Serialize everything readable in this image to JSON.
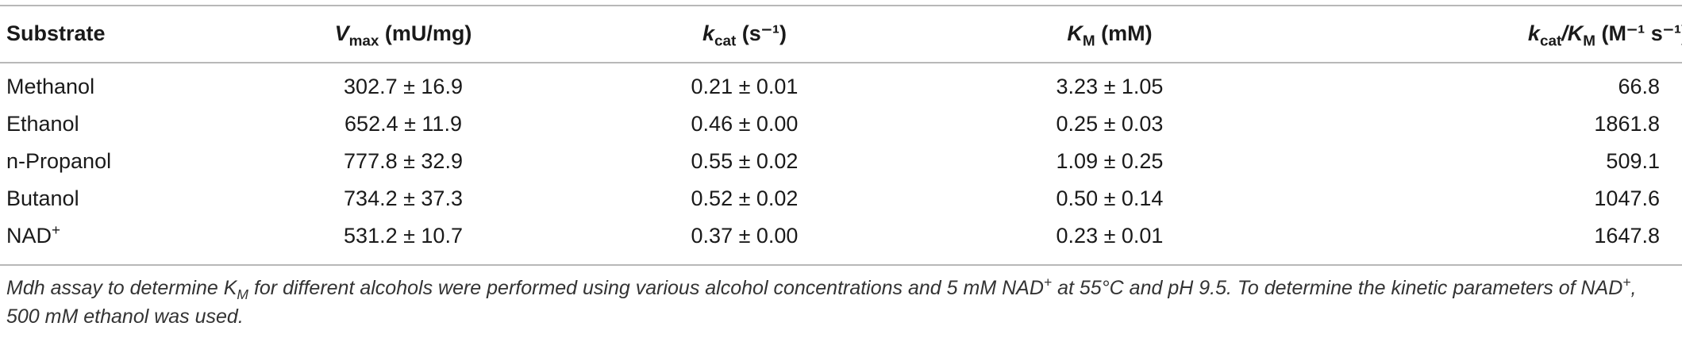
{
  "table": {
    "headers": [
      {
        "main": "Substrate",
        "sub": "",
        "unit": ""
      },
      {
        "main": "V",
        "sub": "max",
        "unit": " (mU/mg)"
      },
      {
        "main": "k",
        "sub": "cat",
        "unit": " (s⁻¹)"
      },
      {
        "main": "K",
        "sub": "M",
        "unit": " (mM)"
      },
      {
        "main": "k",
        "sub": "cat",
        "main2": "/K",
        "sub2": "M",
        "unit": " (M⁻¹ s⁻¹)"
      }
    ],
    "rows": [
      {
        "substrate": "Methanol",
        "vmax": "302.7 ± 16.9",
        "kcat": "0.21 ± 0.01",
        "km": "3.23 ± 1.05",
        "kcat_km": "66.8"
      },
      {
        "substrate": "Ethanol",
        "vmax": "652.4 ± 11.9",
        "kcat": "0.46 ± 0.00",
        "km": "0.25 ± 0.03",
        "kcat_km": "1861.8"
      },
      {
        "substrate": "n-Propanol",
        "vmax": "777.8 ± 32.9",
        "kcat": "0.55 ± 0.02",
        "km": "1.09 ± 0.25",
        "kcat_km": "509.1"
      },
      {
        "substrate": "Butanol",
        "vmax": "734.2 ± 37.3",
        "kcat": "0.52 ± 0.02",
        "km": "0.50 ± 0.14",
        "kcat_km": "1047.6"
      },
      {
        "substrate": "NAD",
        "substrate_sup": "+",
        "vmax": "531.2 ± 10.7",
        "kcat": "0.37 ± 0.00",
        "km": "0.23 ± 0.01",
        "kcat_km": "1647.8"
      }
    ]
  },
  "footnote": {
    "p1": "Mdh assay to determine K",
    "p1_sub": "M",
    "p2": " for different alcohols were performed using various alcohol concentrations and 5 mM NAD",
    "p2_sup": "+",
    "p3": " at 55°C and pH 9.5. To determine the kinetic parameters of NAD",
    "p3_sup": "+",
    "p4": ", 500 mM ethanol was used."
  }
}
